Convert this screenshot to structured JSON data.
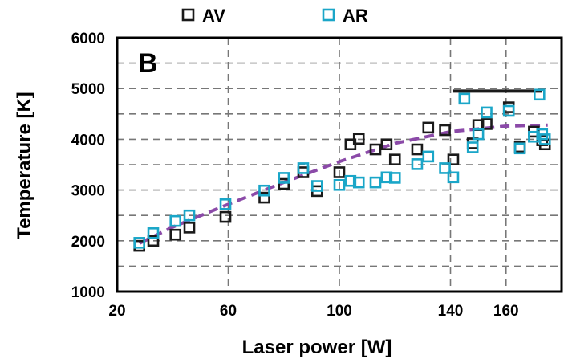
{
  "chart_data": {
    "type": "scatter",
    "panel_label": "B",
    "xlabel": "Laser power [W]",
    "ylabel": "Temperature [K]",
    "xlim": [
      20,
      180
    ],
    "ylim": [
      1000,
      6000
    ],
    "xticks": [
      20,
      60,
      100,
      140,
      160
    ],
    "yticks": [
      1000,
      2000,
      3000,
      4000,
      5000,
      6000
    ],
    "grid": "dashed",
    "legend_placement": "top",
    "series": [
      {
        "name": "AV",
        "marker": "hollow-square",
        "color": "#1a1a1a",
        "points": [
          [
            28,
            1900
          ],
          [
            33,
            2000
          ],
          [
            41,
            2120
          ],
          [
            46,
            2260
          ],
          [
            59,
            2470
          ],
          [
            73,
            2850
          ],
          [
            80,
            3120
          ],
          [
            87,
            3350
          ],
          [
            92,
            2980
          ],
          [
            100,
            3350
          ],
          [
            104,
            3900
          ],
          [
            107,
            4010
          ],
          [
            113,
            3800
          ],
          [
            117,
            3900
          ],
          [
            120,
            3600
          ],
          [
            128,
            3800
          ],
          [
            132,
            4230
          ],
          [
            138,
            4180
          ],
          [
            141,
            3600
          ],
          [
            148,
            3920
          ],
          [
            150,
            4280
          ],
          [
            153,
            4300
          ],
          [
            161,
            4630
          ],
          [
            165,
            3850
          ],
          [
            170,
            4150
          ],
          [
            173,
            3980
          ],
          [
            174,
            3900
          ]
        ]
      },
      {
        "name": "AR",
        "marker": "hollow-square",
        "color": "#1aa6c8",
        "points": [
          [
            28,
            1960
          ],
          [
            33,
            2150
          ],
          [
            41,
            2390
          ],
          [
            46,
            2500
          ],
          [
            59,
            2720
          ],
          [
            73,
            2990
          ],
          [
            80,
            3240
          ],
          [
            87,
            3430
          ],
          [
            92,
            3080
          ],
          [
            100,
            3100
          ],
          [
            104,
            3180
          ],
          [
            107,
            3150
          ],
          [
            113,
            3150
          ],
          [
            117,
            3250
          ],
          [
            120,
            3240
          ],
          [
            128,
            3510
          ],
          [
            132,
            3660
          ],
          [
            138,
            3430
          ],
          [
            141,
            3250
          ],
          [
            145,
            4800
          ],
          [
            148,
            3840
          ],
          [
            150,
            4100
          ],
          [
            153,
            4530
          ],
          [
            161,
            4560
          ],
          [
            165,
            3820
          ],
          [
            170,
            4050
          ],
          [
            172,
            4880
          ],
          [
            173,
            4100
          ],
          [
            174,
            4000
          ]
        ]
      }
    ],
    "trend_line": {
      "style": "dashed",
      "color": "#8b4aa8",
      "x": [
        28,
        40,
        60,
        80,
        100,
        120,
        140,
        160,
        175
      ],
      "y": [
        1950,
        2270,
        2720,
        3150,
        3560,
        3920,
        4150,
        4260,
        4280
      ]
    },
    "reference_line": {
      "color": "#1a1a1a",
      "x": [
        141,
        173
      ],
      "y": 4950
    }
  }
}
